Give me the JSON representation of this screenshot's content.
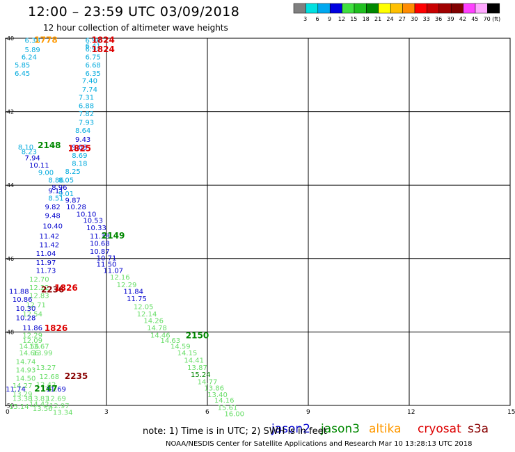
{
  "header": {
    "title": "12:00 – 23:59 UTC 03/09/2018",
    "subtitle": "12 hour collection of altimeter wave heights"
  },
  "colorbar": {
    "colors": [
      "#7f7f7f",
      "#00e0e0",
      "#00a8f0",
      "#0000e0",
      "#40e040",
      "#20c020",
      "#008800",
      "#ffff00",
      "#ffc000",
      "#ff8c00",
      "#ff0000",
      "#c80000",
      "#a00000",
      "#800000",
      "#ff40ff",
      "#ffa8ff",
      "#000000"
    ],
    "labels": [
      "3",
      "6",
      "9",
      "12",
      "15",
      "18",
      "21",
      "24",
      "27",
      "30",
      "33",
      "36",
      "39",
      "42",
      "45",
      "70",
      "(ft)"
    ]
  },
  "footer": {
    "note": "note:  1) Time is in UTC;  2) SWH is in feet",
    "credit": "NOAA/NESDIS Center for Satellite Applications and Research    Mar 10 13:28:13 UTC 2018"
  },
  "satellites": [
    {
      "name": "jason2",
      "color": "#0000cc"
    },
    {
      "name": "jason3",
      "color": "#008800"
    },
    {
      "name": "altika",
      "color": "#ff9900"
    },
    {
      "name": "cryosat",
      "color": "#dd0000"
    },
    {
      "name": "s3a",
      "color": "#880000"
    }
  ],
  "chart_data": {
    "type": "scatter",
    "title": "12:00 – 23:59 UTC 03/09/2018",
    "subtitle": "12 hour collection of altimeter wave heights",
    "xlim": [
      0,
      15
    ],
    "ylim": [
      -50,
      -40
    ],
    "x_ticks": [
      0,
      3,
      6,
      9,
      12,
      15
    ],
    "y_ticks": [
      -40,
      -42,
      -44,
      -46,
      -48,
      -50
    ],
    "x_tick_labels": [
      "0",
      "3",
      "6",
      "9",
      "12",
      "15"
    ],
    "y_tick_labels": [
      "-40",
      "-42",
      "-44",
      "-46",
      "-48",
      "-50"
    ],
    "grid": true,
    "legend_position": "bottom-right",
    "value_units": "ft",
    "value_labels": [
      {
        "x": 0.8,
        "y": -40.05,
        "v": "6.38",
        "c": "#00aadd"
      },
      {
        "x": 2.6,
        "y": -40.05,
        "v": "6.96",
        "c": "#00aadd"
      },
      {
        "x": 2.6,
        "y": -40.2,
        "v": "6.41",
        "c": "#00aadd"
      },
      {
        "x": 2.6,
        "y": -40.28,
        "v": "6.92",
        "c": "#00aadd"
      },
      {
        "x": 0.8,
        "y": -40.3,
        "v": "5.89",
        "c": "#00aadd"
      },
      {
        "x": 2.6,
        "y": -40.5,
        "v": "6.75",
        "c": "#00aadd"
      },
      {
        "x": 0.7,
        "y": -40.5,
        "v": "6.24",
        "c": "#00aadd"
      },
      {
        "x": 2.6,
        "y": -40.72,
        "v": "6.68",
        "c": "#00aadd"
      },
      {
        "x": 0.5,
        "y": -40.72,
        "v": "5.85",
        "c": "#00aadd"
      },
      {
        "x": 2.6,
        "y": -40.95,
        "v": "6.35",
        "c": "#00aadd"
      },
      {
        "x": 0.5,
        "y": -40.95,
        "v": "6.45",
        "c": "#00aadd"
      },
      {
        "x": 2.5,
        "y": -41.15,
        "v": "7.40",
        "c": "#00aadd"
      },
      {
        "x": 2.5,
        "y": -41.38,
        "v": "7.74",
        "c": "#00aadd"
      },
      {
        "x": 2.4,
        "y": -41.6,
        "v": "7.31",
        "c": "#00aadd"
      },
      {
        "x": 2.4,
        "y": -41.83,
        "v": "6.88",
        "c": "#00aadd"
      },
      {
        "x": 2.4,
        "y": -42.05,
        "v": "7.82",
        "c": "#00aadd"
      },
      {
        "x": 2.4,
        "y": -42.28,
        "v": "7.93",
        "c": "#00aadd"
      },
      {
        "x": 2.3,
        "y": -42.5,
        "v": "8.64",
        "c": "#00aadd"
      },
      {
        "x": 2.3,
        "y": -42.75,
        "v": "9.43",
        "c": "#0000cc"
      },
      {
        "x": 2.2,
        "y": -42.95,
        "v": "9.03",
        "c": "#0000cc"
      },
      {
        "x": 0.6,
        "y": -42.95,
        "v": "8.10",
        "c": "#00aadd"
      },
      {
        "x": 0.7,
        "y": -43.08,
        "v": "8.23",
        "c": "#00aadd"
      },
      {
        "x": 2.2,
        "y": -43.18,
        "v": "8.69",
        "c": "#00aadd"
      },
      {
        "x": 0.8,
        "y": -43.25,
        "v": "7.94",
        "c": "#0000cc"
      },
      {
        "x": 2.2,
        "y": -43.4,
        "v": "8.18",
        "c": "#00aadd"
      },
      {
        "x": 1.0,
        "y": -43.45,
        "v": "10.11",
        "c": "#0000cc"
      },
      {
        "x": 2.0,
        "y": -43.62,
        "v": "8.25",
        "c": "#00aadd"
      },
      {
        "x": 1.2,
        "y": -43.65,
        "v": "9.00",
        "c": "#00aadd"
      },
      {
        "x": 1.8,
        "y": -43.85,
        "v": "8.05",
        "c": "#00aadd"
      },
      {
        "x": 1.5,
        "y": -43.85,
        "v": "8.86",
        "c": "#00aadd"
      },
      {
        "x": 1.6,
        "y": -44.05,
        "v": "8.96",
        "c": "#0000cc"
      },
      {
        "x": 1.5,
        "y": -44.15,
        "v": "9.11",
        "c": "#0000cc"
      },
      {
        "x": 1.8,
        "y": -44.22,
        "v": "9.01",
        "c": "#00aadd"
      },
      {
        "x": 1.5,
        "y": -44.35,
        "v": "8.51",
        "c": "#00aadd"
      },
      {
        "x": 2.0,
        "y": -44.4,
        "v": "9.87",
        "c": "#0000cc"
      },
      {
        "x": 2.1,
        "y": -44.58,
        "v": "10.28",
        "c": "#0000cc"
      },
      {
        "x": 1.4,
        "y": -44.58,
        "v": "9.82",
        "c": "#0000cc"
      },
      {
        "x": 2.4,
        "y": -44.78,
        "v": "10.10",
        "c": "#0000cc"
      },
      {
        "x": 1.4,
        "y": -44.82,
        "v": "9.48",
        "c": "#0000cc"
      },
      {
        "x": 2.6,
        "y": -44.95,
        "v": "10.53",
        "c": "#0000cc"
      },
      {
        "x": 2.7,
        "y": -45.15,
        "v": "10.33",
        "c": "#0000cc"
      },
      {
        "x": 1.4,
        "y": -45.1,
        "v": "10.40",
        "c": "#0000cc"
      },
      {
        "x": 2.8,
        "y": -45.38,
        "v": "11.38",
        "c": "#0000cc"
      },
      {
        "x": 1.3,
        "y": -45.38,
        "v": "11.42",
        "c": "#0000cc"
      },
      {
        "x": 2.8,
        "y": -45.58,
        "v": "10.68",
        "c": "#0000cc"
      },
      {
        "x": 1.3,
        "y": -45.62,
        "v": "11.42",
        "c": "#0000cc"
      },
      {
        "x": 2.8,
        "y": -45.8,
        "v": "10.87",
        "c": "#0000cc"
      },
      {
        "x": 1.2,
        "y": -45.85,
        "v": "11.04",
        "c": "#0000cc"
      },
      {
        "x": 3.0,
        "y": -45.98,
        "v": "10.71",
        "c": "#0000cc"
      },
      {
        "x": 1.2,
        "y": -46.1,
        "v": "11.97",
        "c": "#0000cc"
      },
      {
        "x": 3.0,
        "y": -46.15,
        "v": "11.50",
        "c": "#0000cc"
      },
      {
        "x": 3.2,
        "y": -46.32,
        "v": "11.07",
        "c": "#0000cc"
      },
      {
        "x": 1.2,
        "y": -46.32,
        "v": "11.73",
        "c": "#0000cc"
      },
      {
        "x": 3.4,
        "y": -46.5,
        "v": "12.16",
        "c": "#66dd66"
      },
      {
        "x": 1.0,
        "y": -46.55,
        "v": "12.70",
        "c": "#66dd66"
      },
      {
        "x": 3.6,
        "y": -46.7,
        "v": "12.29",
        "c": "#66dd66"
      },
      {
        "x": 1.0,
        "y": -46.78,
        "v": "12.22",
        "c": "#66dd66"
      },
      {
        "x": 3.8,
        "y": -46.88,
        "v": "11.84",
        "c": "#0000cc"
      },
      {
        "x": 0.4,
        "y": -46.88,
        "v": "11.88",
        "c": "#0000cc"
      },
      {
        "x": 1.0,
        "y": -47.0,
        "v": "12.83",
        "c": "#66dd66"
      },
      {
        "x": 3.9,
        "y": -47.08,
        "v": "11.75",
        "c": "#0000cc"
      },
      {
        "x": 0.5,
        "y": -47.1,
        "v": "10.86",
        "c": "#0000cc"
      },
      {
        "x": 0.9,
        "y": -47.25,
        "v": "12.71",
        "c": "#66dd66"
      },
      {
        "x": 4.1,
        "y": -47.3,
        "v": "12.05",
        "c": "#66dd66"
      },
      {
        "x": 0.6,
        "y": -47.35,
        "v": "10.30",
        "c": "#0000cc"
      },
      {
        "x": 4.2,
        "y": -47.5,
        "v": "12.14",
        "c": "#66dd66"
      },
      {
        "x": 0.8,
        "y": -47.5,
        "v": "12.54",
        "c": "#66dd66"
      },
      {
        "x": 0.6,
        "y": -47.6,
        "v": "10.28",
        "c": "#0000cc"
      },
      {
        "x": 4.4,
        "y": -47.68,
        "v": "14.26",
        "c": "#66dd66"
      },
      {
        "x": 4.5,
        "y": -47.88,
        "v": "14.78",
        "c": "#66dd66"
      },
      {
        "x": 0.8,
        "y": -47.88,
        "v": "11.86",
        "c": "#0000cc"
      },
      {
        "x": 4.6,
        "y": -48.08,
        "v": "14.46",
        "c": "#66dd66"
      },
      {
        "x": 0.8,
        "y": -48.08,
        "v": "12.29",
        "c": "#66dd66"
      },
      {
        "x": 4.9,
        "y": -48.22,
        "v": "14.63",
        "c": "#66dd66"
      },
      {
        "x": 0.8,
        "y": -48.22,
        "v": "12.09",
        "c": "#66dd66"
      },
      {
        "x": 5.2,
        "y": -48.38,
        "v": "14.59",
        "c": "#66dd66"
      },
      {
        "x": 0.7,
        "y": -48.38,
        "v": "14.56",
        "c": "#66dd66"
      },
      {
        "x": 1.0,
        "y": -48.38,
        "v": "13.67",
        "c": "#66dd66"
      },
      {
        "x": 5.4,
        "y": -48.56,
        "v": "14.15",
        "c": "#66dd66"
      },
      {
        "x": 0.7,
        "y": -48.56,
        "v": "14.66",
        "c": "#66dd66"
      },
      {
        "x": 1.1,
        "y": -48.56,
        "v": "13.99",
        "c": "#66dd66"
      },
      {
        "x": 5.6,
        "y": -48.76,
        "v": "14.41",
        "c": "#66dd66"
      },
      {
        "x": 0.6,
        "y": -48.8,
        "v": "14.74",
        "c": "#66dd66"
      },
      {
        "x": 5.7,
        "y": -48.96,
        "v": "13.87",
        "c": "#66dd66"
      },
      {
        "x": 1.2,
        "y": -48.96,
        "v": "13.27",
        "c": "#66dd66"
      },
      {
        "x": 0.6,
        "y": -49.02,
        "v": "14.93",
        "c": "#66dd66"
      },
      {
        "x": 5.8,
        "y": -49.15,
        "v": "15.24",
        "c": "#008800"
      },
      {
        "x": 1.3,
        "y": -49.2,
        "v": "12.68",
        "c": "#66dd66"
      },
      {
        "x": 0.6,
        "y": -49.25,
        "v": "14.50",
        "c": "#66dd66"
      },
      {
        "x": 6.0,
        "y": -49.35,
        "v": "14.77",
        "c": "#66dd66"
      },
      {
        "x": 1.2,
        "y": -49.42,
        "v": "12.42",
        "c": "#66dd66"
      },
      {
        "x": 0.5,
        "y": -49.45,
        "v": "14.27",
        "c": "#66dd66"
      },
      {
        "x": 6.2,
        "y": -49.52,
        "v": "13.86",
        "c": "#66dd66"
      },
      {
        "x": 0.3,
        "y": -49.55,
        "v": "11.74",
        "c": "#0000cc"
      },
      {
        "x": 1.5,
        "y": -49.55,
        "v": "11.69",
        "c": "#0000cc"
      },
      {
        "x": 6.3,
        "y": -49.7,
        "v": "13.40",
        "c": "#66dd66"
      },
      {
        "x": 0.5,
        "y": -49.68,
        "v": "13.29",
        "c": "#66dd66"
      },
      {
        "x": 1.5,
        "y": -49.8,
        "v": "12.69",
        "c": "#66dd66"
      },
      {
        "x": 0.5,
        "y": -49.8,
        "v": "13.38",
        "c": "#66dd66"
      },
      {
        "x": 6.5,
        "y": -49.85,
        "v": "14.16",
        "c": "#66dd66"
      },
      {
        "x": 1.0,
        "y": -49.8,
        "v": "13.81",
        "c": "#66dd66"
      },
      {
        "x": 1.0,
        "y": -49.95,
        "v": "14.42",
        "c": "#66dd66"
      },
      {
        "x": 6.6,
        "y": -50.05,
        "v": "15.61",
        "c": "#66dd66"
      },
      {
        "x": 1.6,
        "y": -50.0,
        "v": "12.97",
        "c": "#66dd66"
      },
      {
        "x": 0.4,
        "y": -50.02,
        "v": "15.14",
        "c": "#66dd66"
      },
      {
        "x": 1.1,
        "y": -50.08,
        "v": "13.56",
        "c": "#66dd66"
      },
      {
        "x": 6.8,
        "y": -50.22,
        "v": "16.00",
        "c": "#66dd66"
      },
      {
        "x": 1.7,
        "y": -50.18,
        "v": "13.34",
        "c": "#66dd66"
      },
      {
        "x": 1.2,
        "y": -40.05,
        "v": "1778",
        "c": "#ff9900"
      },
      {
        "x": 2.9,
        "y": -40.05,
        "v": "1824",
        "c": "#dd0000"
      },
      {
        "x": 2.9,
        "y": -40.3,
        "v": "1824",
        "c": "#dd0000"
      },
      {
        "x": 2.2,
        "y": -43.0,
        "v": "1825",
        "c": "#dd0000"
      },
      {
        "x": 1.3,
        "y": -42.92,
        "v": "2148",
        "c": "#008800"
      },
      {
        "x": 3.2,
        "y": -45.38,
        "v": "2149",
        "c": "#008800"
      },
      {
        "x": 1.4,
        "y": -46.85,
        "v": "2236",
        "c": "#880000"
      },
      {
        "x": 1.8,
        "y": -46.8,
        "v": "1826",
        "c": "#dd0000"
      },
      {
        "x": 1.5,
        "y": -47.9,
        "v": "1826",
        "c": "#dd0000"
      },
      {
        "x": 5.7,
        "y": -48.1,
        "v": "2150",
        "c": "#008800"
      },
      {
        "x": 2.1,
        "y": -49.2,
        "v": "2235",
        "c": "#880000"
      },
      {
        "x": 1.2,
        "y": -49.55,
        "v": "2147",
        "c": "#008800"
      }
    ]
  }
}
